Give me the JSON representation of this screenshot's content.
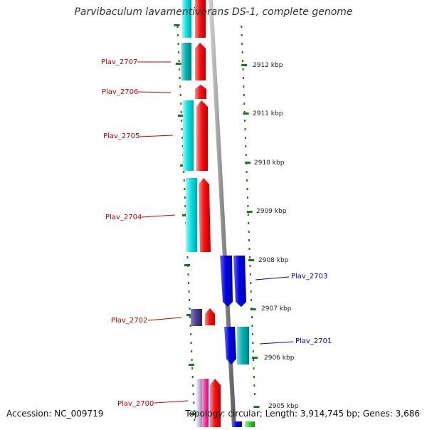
{
  "title": "Parvibaculum lavamentivorans DS-1, complete genome",
  "footer": {
    "accession": "Accession: NC_009719",
    "summary": "Topology: circular; Length: 3,914,745 bp; Genes: 3,686"
  },
  "colors": {
    "left_label": "#cc0000",
    "right_label": "#0000cc",
    "tick": "#1a7a1a",
    "backbone": "#9a9a9a",
    "cyan": "#00e0e0",
    "teal": "#00b0b0",
    "red": "#ff0000",
    "blue": "#0000ee",
    "purple": "#4b3c8c",
    "pink": "#ff3399",
    "lavender": "#c8b8e0",
    "green": "#33cc33"
  },
  "scale_labels": [
    "2912 kbp",
    "2911 kbp",
    "2910 kbp",
    "2909 kbp",
    "2908 kbp",
    "2907 kbp",
    "2906 kbp",
    "2905 kbp"
  ],
  "genes_left": [
    "Plav_2707",
    "Plav_2706",
    "Plav_2705",
    "Plav_2704",
    "Plav_2702",
    "Plav_2700"
  ],
  "genes_right": [
    "Plav_2703",
    "Plav_2701"
  ]
}
